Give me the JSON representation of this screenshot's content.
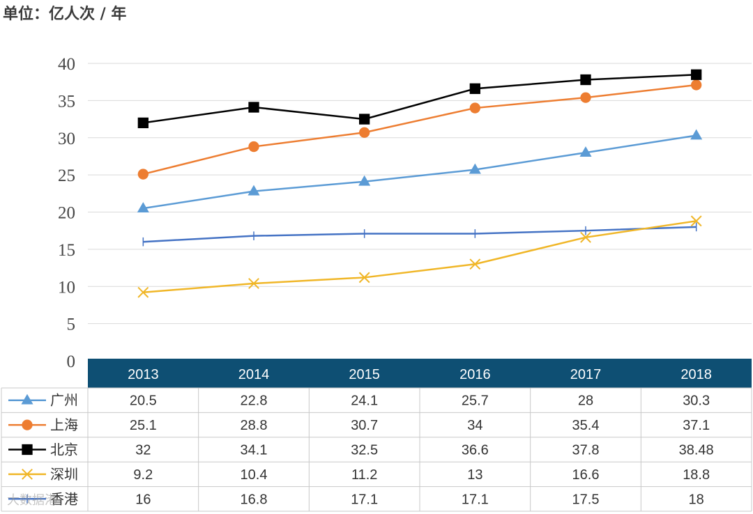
{
  "unit_label": "单位：亿人次 / 年",
  "watermark": "大数据港",
  "chart_data": {
    "type": "line",
    "title": "",
    "xlabel": "",
    "ylabel": "",
    "categories": [
      "2013",
      "2014",
      "2015",
      "2016",
      "2017",
      "2018"
    ],
    "ylim": [
      0,
      40
    ],
    "yticks": [
      0,
      5,
      10,
      15,
      20,
      25,
      30,
      35,
      40
    ],
    "grid": true,
    "legend": "data-table-left",
    "series": [
      {
        "name": "广州",
        "marker": "triangle",
        "color": "#5B9BD5",
        "values": [
          20.5,
          22.8,
          24.1,
          25.7,
          28,
          30.3
        ]
      },
      {
        "name": "上海",
        "marker": "circle",
        "color": "#ED7D31",
        "values": [
          25.1,
          28.8,
          30.7,
          34,
          35.4,
          37.1
        ]
      },
      {
        "name": "北京",
        "marker": "square",
        "color": "#000000",
        "values": [
          32,
          34.1,
          32.5,
          36.6,
          37.8,
          38.48
        ]
      },
      {
        "name": "深圳",
        "marker": "x",
        "color": "#F0B627",
        "values": [
          9.2,
          10.4,
          11.2,
          13,
          16.6,
          18.8
        ]
      },
      {
        "name": "香港",
        "marker": "plus",
        "color": "#4472C4",
        "values": [
          16,
          16.8,
          17.1,
          17.1,
          17.5,
          18
        ]
      }
    ],
    "table_header_color": "#0E4F73"
  }
}
